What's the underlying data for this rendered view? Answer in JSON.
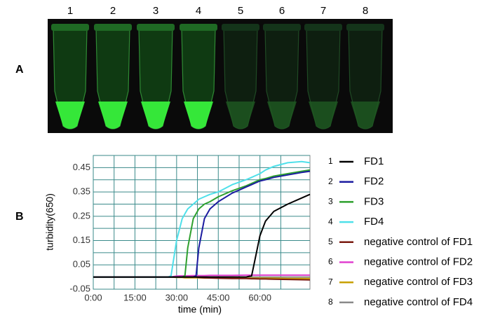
{
  "panel_labels": [
    "A",
    "B"
  ],
  "tube_labels": [
    "1",
    "2",
    "3",
    "4",
    "5",
    "6",
    "7",
    "8"
  ],
  "chart_data": {
    "type": "line",
    "x_label": "time (min)",
    "y_label": "turbidity(650)",
    "x": [
      0,
      10,
      20,
      27,
      28,
      30,
      32,
      33,
      34,
      36,
      37,
      38,
      40,
      42,
      45,
      50,
      55,
      57,
      58,
      60,
      62,
      65,
      70,
      75,
      78
    ],
    "xlim": [
      0,
      78
    ],
    "ylim": [
      -0.05,
      0.5
    ],
    "xticks": [
      {
        "value": 0,
        "label": "0:00"
      },
      {
        "value": 15,
        "label": "15:00"
      },
      {
        "value": 30,
        "label": "30:00"
      },
      {
        "value": 45,
        "label": "45:00"
      },
      {
        "value": 60,
        "label": "60:00"
      }
    ],
    "minor_xticks": [
      7.5,
      22.5,
      37.5,
      52.5,
      67.5
    ],
    "yticks": [
      0.45,
      0.35,
      0.25,
      0.15,
      0.05,
      -0.05
    ],
    "minor_yticks": [
      0.4,
      0.3,
      0.2,
      0.1,
      0,
      0.5
    ],
    "grid": true,
    "legend_position": "right",
    "series": [
      {
        "number": "1",
        "name": "FD1",
        "color": "#000000",
        "values": [
          0,
          0,
          0,
          0,
          0,
          0,
          0,
          0,
          0,
          0,
          0,
          0,
          0,
          0,
          0,
          0,
          0,
          0.005,
          0.06,
          0.17,
          0.23,
          0.27,
          0.3,
          0.325,
          0.34
        ]
      },
      {
        "number": "2",
        "name": "FD2",
        "color": "#1c1ca0",
        "values": [
          0,
          0,
          0,
          0,
          0,
          0,
          0,
          0,
          0,
          0,
          0.005,
          0.12,
          0.24,
          0.28,
          0.31,
          0.345,
          0.37,
          0.38,
          0.385,
          0.395,
          0.4,
          0.41,
          0.42,
          0.43,
          0.435
        ]
      },
      {
        "number": "3",
        "name": "FD3",
        "color": "#2ea02e",
        "values": [
          0,
          0,
          0,
          0,
          0,
          0,
          0,
          0.005,
          0.12,
          0.24,
          0.26,
          0.28,
          0.3,
          0.31,
          0.33,
          0.355,
          0.375,
          0.385,
          0.39,
          0.4,
          0.405,
          0.415,
          0.425,
          0.435,
          0.44
        ]
      },
      {
        "number": "4",
        "name": "FD4",
        "color": "#4ee0ea",
        "values": [
          0,
          0,
          0,
          0,
          0.005,
          0.15,
          0.24,
          0.26,
          0.28,
          0.3,
          0.31,
          0.32,
          0.33,
          0.34,
          0.35,
          0.38,
          0.4,
          0.41,
          0.415,
          0.425,
          0.44,
          0.455,
          0.47,
          0.475,
          0.47
        ]
      },
      {
        "number": "5",
        "name": "negative control of FD1",
        "color": "#7a1a10",
        "values": [
          0,
          0,
          0,
          0,
          0,
          0,
          0,
          0,
          0,
          0,
          0,
          -0.002,
          -0.003,
          -0.004,
          -0.005,
          -0.006,
          -0.006,
          -0.007,
          -0.007,
          -0.008,
          -0.008,
          -0.009,
          -0.01,
          -0.011,
          -0.012
        ]
      },
      {
        "number": "6",
        "name": "negative control of FD2",
        "color": "#e040d0",
        "values": [
          0,
          0,
          0,
          0,
          0,
          0.004,
          0.005,
          0.005,
          0.005,
          0.006,
          0.006,
          0.006,
          0.006,
          0.007,
          0.007,
          0.007,
          0.008,
          0.008,
          0.008,
          0.008,
          0.008,
          0.008,
          0.008,
          0.008,
          0.008
        ]
      },
      {
        "number": "7",
        "name": "negative control of FD3",
        "color": "#c8a000",
        "values": [
          0,
          0,
          0,
          0,
          0,
          -0.002,
          -0.002,
          -0.003,
          -0.003,
          -0.003,
          -0.003,
          -0.003,
          -0.004,
          -0.004,
          -0.004,
          -0.004,
          -0.005,
          -0.005,
          -0.005,
          -0.005,
          -0.005,
          -0.005,
          -0.006,
          -0.006,
          -0.006
        ]
      },
      {
        "number": "8",
        "name": "negative control of FD4",
        "color": "#8a8a8a",
        "values": [
          0,
          0,
          0,
          0,
          0,
          0,
          0,
          0,
          0,
          0,
          0,
          0,
          0,
          0,
          0,
          0,
          0,
          0,
          0,
          0,
          0,
          0,
          0,
          0,
          0
        ]
      }
    ]
  }
}
